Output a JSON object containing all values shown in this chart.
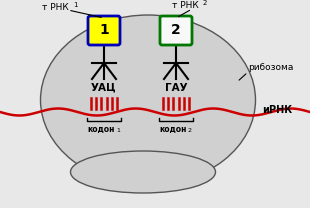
{
  "bg_color": "#e8e8e8",
  "ribosome_color": "#d0d0d0",
  "ribosome_border": "#555555",
  "trna1_box_fill": "#ffff00",
  "trna1_box_border": "#0000bb",
  "trna2_box_fill": "#f8f8f8",
  "trna2_box_border": "#007700",
  "mrna_color": "#cc0000",
  "text_color": "#000000",
  "anticodon1": "УАЦ",
  "anticodon2": "ГАУ",
  "trna1_label": "т РНК",
  "trna1_sub": "1",
  "trna2_label": "т РНК",
  "trna2_sub": "2",
  "ribosome_label": "рибозома",
  "mrna_label": "иРНК",
  "codon1_label": "кодон",
  "codon1_sub": "1",
  "codon2_label": "кодон",
  "codon2_sub": "2",
  "trna1_num": "1",
  "trna2_num": "2",
  "fig_width": 3.1,
  "fig_height": 2.08,
  "dpi": 100
}
